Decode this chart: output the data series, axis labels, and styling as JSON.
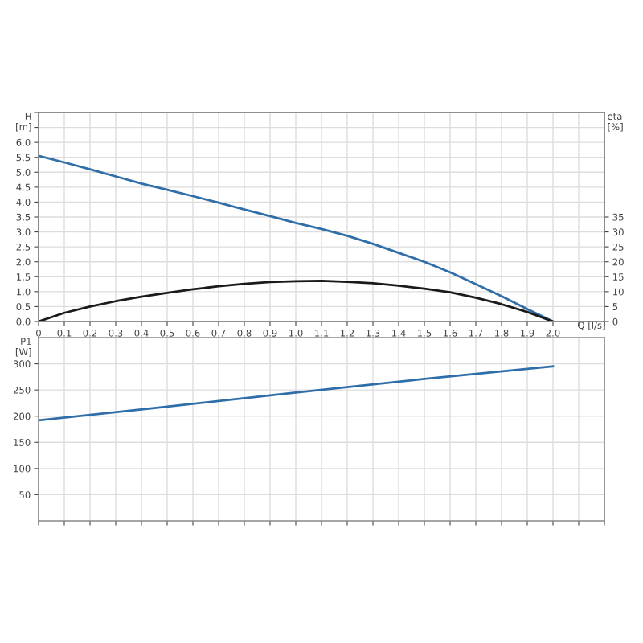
{
  "chart_data": [
    {
      "type": "line",
      "xlabel": "Q [l/s]",
      "ylabel": "H [m]",
      "y2label": "eta [%]",
      "x": [
        0,
        0.1,
        0.2,
        0.3,
        0.4,
        0.5,
        0.6,
        0.7,
        0.8,
        0.9,
        1.0,
        1.1,
        1.2,
        1.3,
        1.4,
        1.5,
        1.6,
        1.7,
        1.8,
        1.9,
        2.0
      ],
      "series": [
        {
          "color": "#2f6ea8",
          "values": [
            5.55,
            5.33,
            5.1,
            4.86,
            4.62,
            4.41,
            4.2,
            3.98,
            3.75,
            3.53,
            3.3,
            3.1,
            2.87,
            2.6,
            2.3,
            2.0,
            1.65,
            1.25,
            0.85,
            0.42,
            0
          ]
        },
        {
          "color": "#1a1a1a",
          "axis": "y2",
          "values": [
            0,
            2.9,
            5.0,
            6.8,
            8.3,
            9.6,
            10.8,
            11.8,
            12.6,
            13.2,
            13.5,
            13.6,
            13.3,
            12.8,
            12.0,
            11.0,
            9.8,
            8.0,
            5.8,
            3.2,
            0
          ]
        }
      ],
      "xlim": [
        0,
        2.2
      ],
      "xticks": [
        0,
        0.1,
        0.2,
        0.3,
        0.4,
        0.5,
        0.6,
        0.7,
        0.8,
        0.9,
        {
          "value": 1.0,
          "label": "1.0"
        },
        1.1,
        1.2,
        1.3,
        1.4,
        1.5,
        1.6,
        1.7,
        1.8,
        1.9,
        {
          "value": 2.0,
          "label": "2.0"
        },
        {
          "value": 2.1,
          "label": null
        },
        {
          "value": 2.2,
          "label": null
        }
      ],
      "ylim": [
        0,
        7
      ],
      "yticks": [
        {
          "value": 0,
          "label": "0.0"
        },
        0.5,
        {
          "value": 1,
          "label": "1.0"
        },
        1.5,
        {
          "value": 2,
          "label": "2.0"
        },
        2.5,
        {
          "value": 3,
          "label": "3.0"
        },
        3.5,
        {
          "value": 4,
          "label": "4.0"
        },
        4.5,
        {
          "value": 5,
          "label": "5.0"
        },
        5.5,
        {
          "value": 6,
          "label": "6.0"
        },
        {
          "value": 6.5,
          "label": null
        },
        {
          "value": 7,
          "label": null
        }
      ],
      "y2lim": [
        0,
        70
      ],
      "y2ticks": [
        0,
        5,
        10,
        15,
        20,
        25,
        30,
        35
      ],
      "grid": true,
      "marker": "none",
      "line_style": "solid"
    },
    {
      "type": "line",
      "ylabel": "P1 [W]",
      "x": [
        0,
        0.5,
        1.0,
        1.5,
        2.0
      ],
      "series": [
        {
          "color": "#2f6ea8",
          "values": [
            192,
            218,
            245,
            271,
            295
          ]
        }
      ],
      "xlim": [
        0,
        2.2
      ],
      "xticks": [
        0,
        0.1,
        0.2,
        0.3,
        0.4,
        0.5,
        0.6,
        0.7,
        0.8,
        0.9,
        1.0,
        1.1,
        1.2,
        1.3,
        1.4,
        1.5,
        1.6,
        1.7,
        1.8,
        1.9,
        2.0,
        2.1,
        2.2
      ],
      "ylim": [
        0,
        350
      ],
      "yticks": [
        50,
        100,
        150,
        200,
        250,
        300
      ],
      "tick_labels": "y",
      "grid": true,
      "marker": "none",
      "line_style": "solid"
    }
  ]
}
